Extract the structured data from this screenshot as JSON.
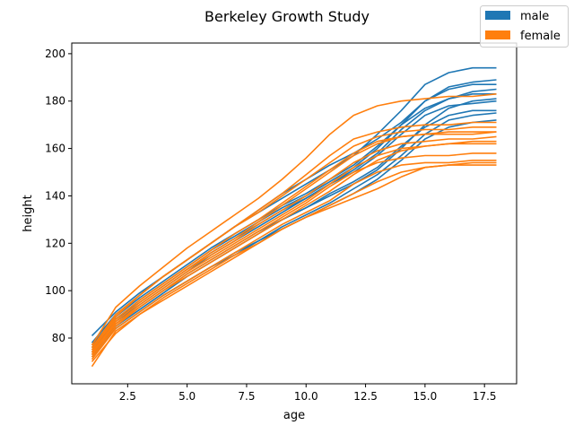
{
  "chart_data": {
    "type": "line",
    "title": "Berkeley Growth Study",
    "xlabel": "age",
    "ylabel": "height",
    "xlim": [
      0.15,
      18.85
    ],
    "ylim": [
      60.7,
      204.5
    ],
    "xticks": [
      "2.5",
      "5.0",
      "7.5",
      "10.0",
      "12.5",
      "15.0",
      "17.5"
    ],
    "yticks": [
      "80",
      "100",
      "120",
      "140",
      "160",
      "180",
      "200"
    ],
    "grid": false,
    "legend": {
      "placement": "top-right",
      "entries": [
        {
          "label": "male",
          "color": "#1f77b4"
        },
        {
          "label": "female",
          "color": "#ff7f0e"
        }
      ]
    },
    "x": [
      1,
      2,
      3,
      4,
      5,
      6,
      7,
      8,
      9,
      10,
      11,
      12,
      13,
      14,
      15,
      16,
      17,
      18
    ],
    "groups": [
      {
        "name": "male",
        "color": "#1f77b4",
        "series": [
          [
            76,
            88,
            96,
            103,
            110,
            117,
            123,
            129,
            135,
            140,
            146,
            152,
            160,
            170,
            180,
            186,
            188,
            189
          ],
          [
            81,
            91,
            99,
            106,
            113,
            120,
            127,
            133,
            139,
            145,
            151,
            157,
            166,
            176,
            187,
            192,
            194,
            194
          ],
          [
            74,
            86,
            93,
            100,
            107,
            113,
            119,
            125,
            130,
            135,
            140,
            145,
            151,
            160,
            170,
            177,
            180,
            181
          ],
          [
            73,
            84,
            91,
            98,
            104,
            110,
            116,
            121,
            127,
            132,
            137,
            143,
            149,
            157,
            166,
            172,
            174,
            175
          ],
          [
            77,
            89,
            97,
            104,
            111,
            118,
            124,
            130,
            136,
            141,
            147,
            153,
            161,
            170,
            177,
            181,
            183,
            183
          ],
          [
            75,
            87,
            94,
            101,
            108,
            115,
            121,
            127,
            133,
            139,
            145,
            150,
            157,
            166,
            174,
            178,
            179,
            180
          ],
          [
            72,
            84,
            91,
            98,
            104,
            110,
            115,
            121,
            126,
            131,
            136,
            141,
            147,
            155,
            164,
            169,
            171,
            172
          ],
          [
            78,
            90,
            98,
            106,
            113,
            120,
            127,
            134,
            141,
            147,
            153,
            158,
            164,
            171,
            180,
            185,
            187,
            187
          ],
          [
            74,
            85,
            92,
            99,
            106,
            112,
            118,
            124,
            130,
            135,
            141,
            146,
            152,
            161,
            169,
            174,
            176,
            176
          ],
          [
            76,
            88,
            95,
            102,
            109,
            116,
            122,
            128,
            134,
            139,
            145,
            151,
            158,
            168,
            176,
            181,
            184,
            185
          ]
        ]
      },
      {
        "name": "female",
        "color": "#ff7f0e",
        "series": [
          [
            74,
            86,
            94,
            101,
            108,
            114,
            120,
            126,
            132,
            138,
            145,
            152,
            157,
            160,
            161,
            162,
            162,
            162
          ],
          [
            72,
            85,
            93,
            100,
            106,
            112,
            118,
            124,
            130,
            136,
            142,
            149,
            155,
            159,
            161,
            162,
            163,
            163
          ],
          [
            75,
            89,
            98,
            106,
            113,
            120,
            127,
            134,
            141,
            149,
            157,
            164,
            167,
            169,
            170,
            170,
            171,
            171
          ],
          [
            77,
            93,
            102,
            110,
            118,
            125,
            132,
            139,
            147,
            156,
            166,
            174,
            178,
            180,
            181,
            182,
            182,
            183
          ],
          [
            70,
            82,
            90,
            96,
            102,
            108,
            114,
            120,
            126,
            131,
            136,
            141,
            146,
            150,
            152,
            153,
            154,
            154
          ],
          [
            73,
            86,
            93,
            100,
            107,
            113,
            119,
            125,
            131,
            137,
            144,
            150,
            154,
            156,
            157,
            157,
            158,
            158
          ],
          [
            71,
            84,
            91,
            98,
            104,
            110,
            116,
            122,
            128,
            133,
            138,
            145,
            150,
            153,
            154,
            154,
            155,
            155
          ],
          [
            76,
            90,
            98,
            106,
            113,
            120,
            127,
            133,
            140,
            147,
            154,
            161,
            165,
            167,
            168,
            168,
            169,
            169
          ],
          [
            74,
            87,
            95,
            102,
            109,
            115,
            121,
            128,
            134,
            140,
            147,
            154,
            159,
            162,
            163,
            164,
            164,
            165
          ],
          [
            68,
            83,
            90,
            97,
            103,
            109,
            115,
            120,
            126,
            131,
            135,
            139,
            143,
            148,
            152,
            153,
            153,
            153
          ],
          [
            75,
            88,
            96,
            103,
            110,
            117,
            124,
            130,
            137,
            144,
            151,
            158,
            163,
            165,
            166,
            167,
            167,
            167
          ],
          [
            73,
            87,
            95,
            102,
            109,
            116,
            122,
            129,
            136,
            143,
            150,
            157,
            162,
            165,
            166,
            166,
            166,
            167
          ]
        ]
      }
    ]
  }
}
